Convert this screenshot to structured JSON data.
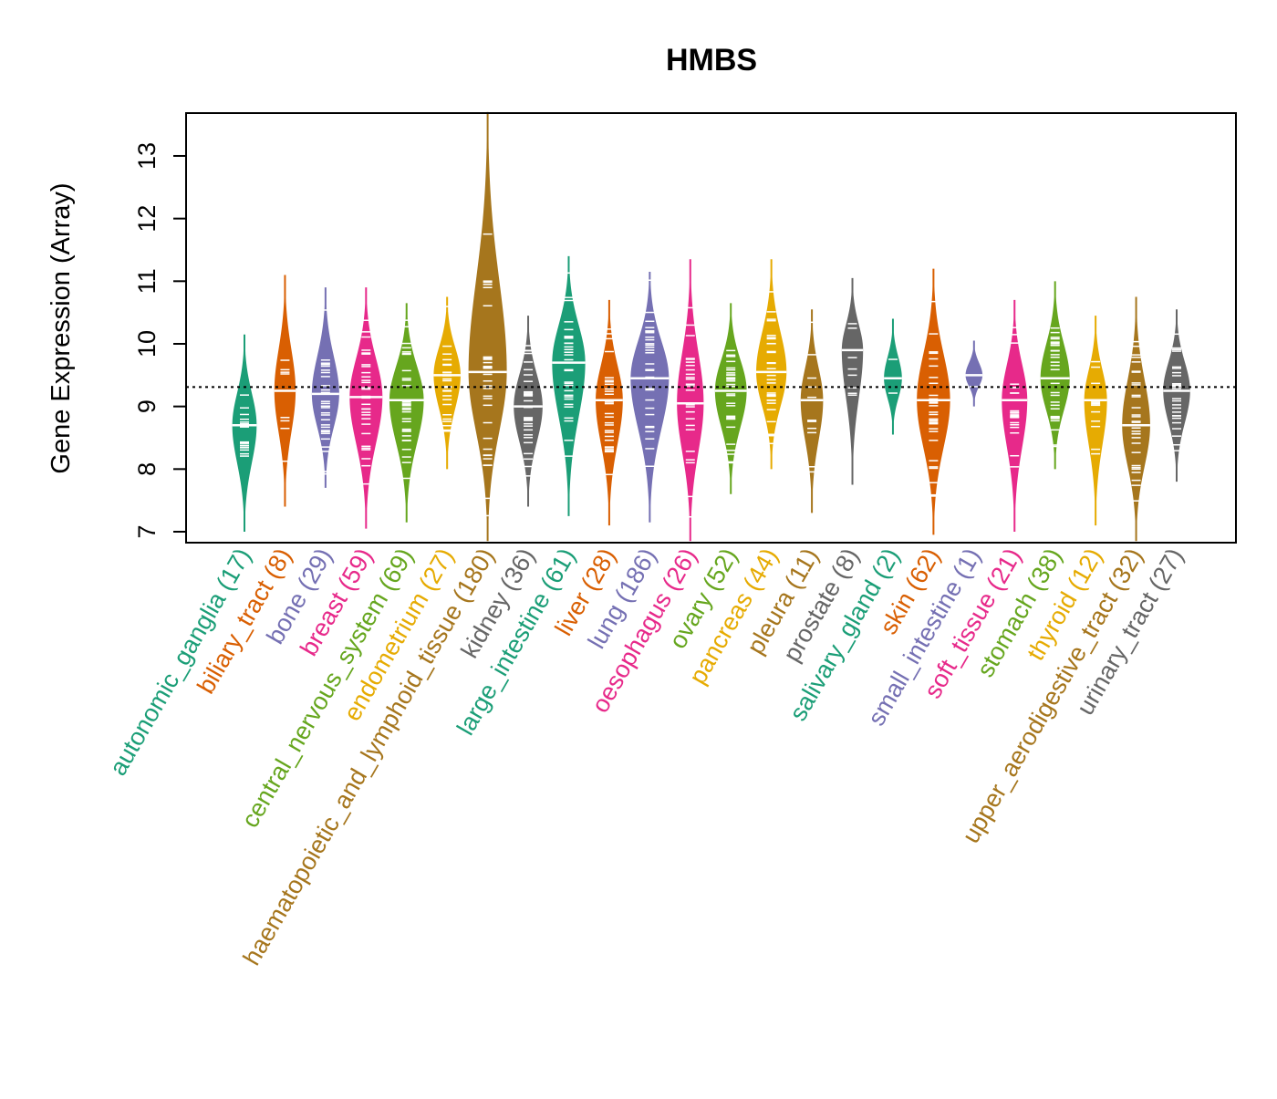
{
  "chart_data": {
    "type": "beanplot",
    "title": "HMBS",
    "xlabel": "",
    "ylabel": "Gene Expression (Array)",
    "ylim": [
      6.83,
      13.7
    ],
    "yticks": [
      7,
      8,
      9,
      10,
      11,
      12,
      13
    ],
    "reference_line": 9.31,
    "palette": [
      "#1B9E77",
      "#D95F02",
      "#7570B3",
      "#E7298A",
      "#66A61E",
      "#E6AB02",
      "#A6761D",
      "#666666"
    ],
    "categories": [
      {
        "name": "autonomic_ganglia",
        "n": 17,
        "label": "autonomic_ganglia (17)",
        "min": 7.0,
        "max": 10.15,
        "median": 8.7
      },
      {
        "name": "biliary_tract",
        "n": 8,
        "label": "biliary_tract (8)",
        "min": 7.4,
        "max": 11.1,
        "median": 9.25
      },
      {
        "name": "bone",
        "n": 29,
        "label": "bone (29)",
        "min": 7.7,
        "max": 10.9,
        "median": 9.2
      },
      {
        "name": "breast",
        "n": 59,
        "label": "breast (59)",
        "min": 7.05,
        "max": 10.9,
        "median": 9.15
      },
      {
        "name": "central_nervous_system",
        "n": 69,
        "label": "central_nervous_system (69)",
        "min": 7.15,
        "max": 10.65,
        "median": 9.1
      },
      {
        "name": "endometrium",
        "n": 27,
        "label": "endometrium (27)",
        "min": 8.0,
        "max": 10.75,
        "median": 9.5
      },
      {
        "name": "haematopoietic_and_lymphoid_tissue",
        "n": 180,
        "label": "haematopoietic_and_lymphoid_tissue (180)",
        "min": 6.85,
        "max": 13.7,
        "median": 9.55
      },
      {
        "name": "kidney",
        "n": 36,
        "label": "kidney (36)",
        "min": 7.4,
        "max": 10.45,
        "median": 9.0
      },
      {
        "name": "large_intestine",
        "n": 61,
        "label": "large_intestine (61)",
        "min": 7.25,
        "max": 11.4,
        "median": 9.7
      },
      {
        "name": "liver",
        "n": 28,
        "label": "liver (28)",
        "min": 7.1,
        "max": 10.7,
        "median": 9.1
      },
      {
        "name": "lung",
        "n": 186,
        "label": "lung (186)",
        "min": 7.15,
        "max": 11.15,
        "median": 9.45
      },
      {
        "name": "oesophagus",
        "n": 26,
        "label": "oesophagus (26)",
        "min": 6.85,
        "max": 11.35,
        "median": 9.05
      },
      {
        "name": "ovary",
        "n": 52,
        "label": "ovary (52)",
        "min": 7.6,
        "max": 10.65,
        "median": 9.25
      },
      {
        "name": "pancreas",
        "n": 44,
        "label": "pancreas (44)",
        "min": 8.0,
        "max": 11.35,
        "median": 9.55
      },
      {
        "name": "pleura",
        "n": 11,
        "label": "pleura (11)",
        "min": 7.3,
        "max": 10.55,
        "median": 9.1
      },
      {
        "name": "prostate",
        "n": 8,
        "label": "prostate (8)",
        "min": 7.75,
        "max": 11.05,
        "median": 9.9
      },
      {
        "name": "salivary_gland",
        "n": 2,
        "label": "salivary_gland (2)",
        "min": 8.55,
        "max": 10.4,
        "median": 9.45
      },
      {
        "name": "skin",
        "n": 62,
        "label": "skin (62)",
        "min": 6.95,
        "max": 11.2,
        "median": 9.1
      },
      {
        "name": "small_intestine",
        "n": 1,
        "label": "small_intestine (1)",
        "min": 9.0,
        "max": 10.05,
        "median": 9.5
      },
      {
        "name": "soft_tissue",
        "n": 21,
        "label": "soft_tissue (21)",
        "min": 7.0,
        "max": 10.7,
        "median": 9.1
      },
      {
        "name": "stomach",
        "n": 38,
        "label": "stomach (38)",
        "min": 8.0,
        "max": 11.0,
        "median": 9.45
      },
      {
        "name": "thyroid",
        "n": 12,
        "label": "thyroid (12)",
        "min": 7.1,
        "max": 10.45,
        "median": 9.1
      },
      {
        "name": "upper_aerodigestive_tract",
        "n": 32,
        "label": "upper_aerodigestive_tract (32)",
        "min": 6.85,
        "max": 10.75,
        "median": 8.7
      },
      {
        "name": "urinary_tract",
        "n": 27,
        "label": "urinary_tract (27)",
        "min": 7.8,
        "max": 10.55,
        "median": 9.25
      }
    ]
  }
}
